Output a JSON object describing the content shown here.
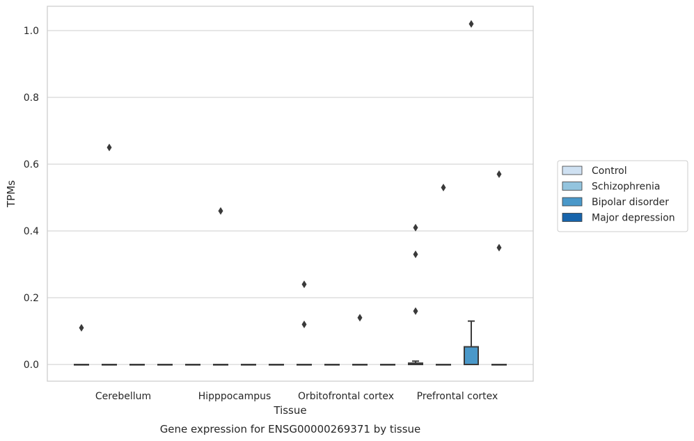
{
  "chart_data": {
    "type": "box",
    "xlabel": "Tissue",
    "ylabel": "TPMs",
    "caption": "Gene expression for ENSG00000269371 by tissue",
    "categories": [
      "Cerebellum",
      "Hipppocampus",
      "Orbitofrontal cortex",
      "Prefrontal cortex"
    ],
    "ylim": [
      -0.05,
      1.075
    ],
    "yticks": [
      0.0,
      0.2,
      0.4,
      0.6,
      0.8,
      1.0
    ],
    "ytick_labels": [
      "0.0",
      "0.2",
      "0.4",
      "0.6",
      "0.8",
      "1.0"
    ],
    "grid": true,
    "legend_position": "right",
    "series": [
      {
        "name": "Control",
        "color": "#cfe1f2",
        "boxes": [
          {
            "q1": 0,
            "median": 0,
            "q3": 0,
            "whisker_low": 0,
            "whisker_high": 0,
            "outliers": [
              0.11
            ]
          },
          {
            "q1": 0,
            "median": 0,
            "q3": 0,
            "whisker_low": 0,
            "whisker_high": 0,
            "outliers": []
          },
          {
            "q1": 0,
            "median": 0,
            "q3": 0,
            "whisker_low": 0,
            "whisker_high": 0,
            "outliers": [
              0.12,
              0.24
            ]
          },
          {
            "q1": 0,
            "median": 0,
            "q3": 0.004,
            "whisker_low": 0,
            "whisker_high": 0.01,
            "outliers": [
              0.16,
              0.33,
              0.41
            ]
          }
        ]
      },
      {
        "name": "Schizophrenia",
        "color": "#93c4de",
        "boxes": [
          {
            "q1": 0,
            "median": 0,
            "q3": 0,
            "whisker_low": 0,
            "whisker_high": 0,
            "outliers": [
              0.65
            ]
          },
          {
            "q1": 0,
            "median": 0,
            "q3": 0,
            "whisker_low": 0,
            "whisker_high": 0,
            "outliers": [
              0.46
            ]
          },
          {
            "q1": 0,
            "median": 0,
            "q3": 0,
            "whisker_low": 0,
            "whisker_high": 0,
            "outliers": []
          },
          {
            "q1": 0,
            "median": 0,
            "q3": 0,
            "whisker_low": 0,
            "whisker_high": 0,
            "outliers": [
              0.53
            ]
          }
        ]
      },
      {
        "name": "Bipolar disorder",
        "color": "#4a98c9",
        "boxes": [
          {
            "q1": 0,
            "median": 0,
            "q3": 0,
            "whisker_low": 0,
            "whisker_high": 0,
            "outliers": []
          },
          {
            "q1": 0,
            "median": 0,
            "q3": 0,
            "whisker_low": 0,
            "whisker_high": 0,
            "outliers": []
          },
          {
            "q1": 0,
            "median": 0,
            "q3": 0,
            "whisker_low": 0,
            "whisker_high": 0,
            "outliers": [
              0.14
            ]
          },
          {
            "q1": 0,
            "median": 0,
            "q3": 0.053,
            "whisker_low": 0,
            "whisker_high": 0.13,
            "outliers": [
              1.02
            ]
          }
        ]
      },
      {
        "name": "Major depression",
        "color": "#1764ab",
        "boxes": [
          {
            "q1": 0,
            "median": 0,
            "q3": 0,
            "whisker_low": 0,
            "whisker_high": 0,
            "outliers": []
          },
          {
            "q1": 0,
            "median": 0,
            "q3": 0,
            "whisker_low": 0,
            "whisker_high": 0,
            "outliers": []
          },
          {
            "q1": 0,
            "median": 0,
            "q3": 0,
            "whisker_low": 0,
            "whisker_high": 0,
            "outliers": []
          },
          {
            "q1": 0,
            "median": 0,
            "q3": 0,
            "whisker_low": 0,
            "whisker_high": 0,
            "outliers": [
              0.35,
              0.57
            ]
          }
        ]
      }
    ]
  }
}
